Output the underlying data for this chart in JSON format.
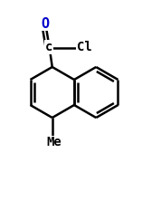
{
  "bg_color": "#ffffff",
  "bond_color": "#000000",
  "blue_color": "#0000cc",
  "lw": 1.8,
  "BL": 28,
  "font_size": 10,
  "o_text": "O",
  "c_text": "c",
  "cl_text": "Cl",
  "me_text": "Me"
}
